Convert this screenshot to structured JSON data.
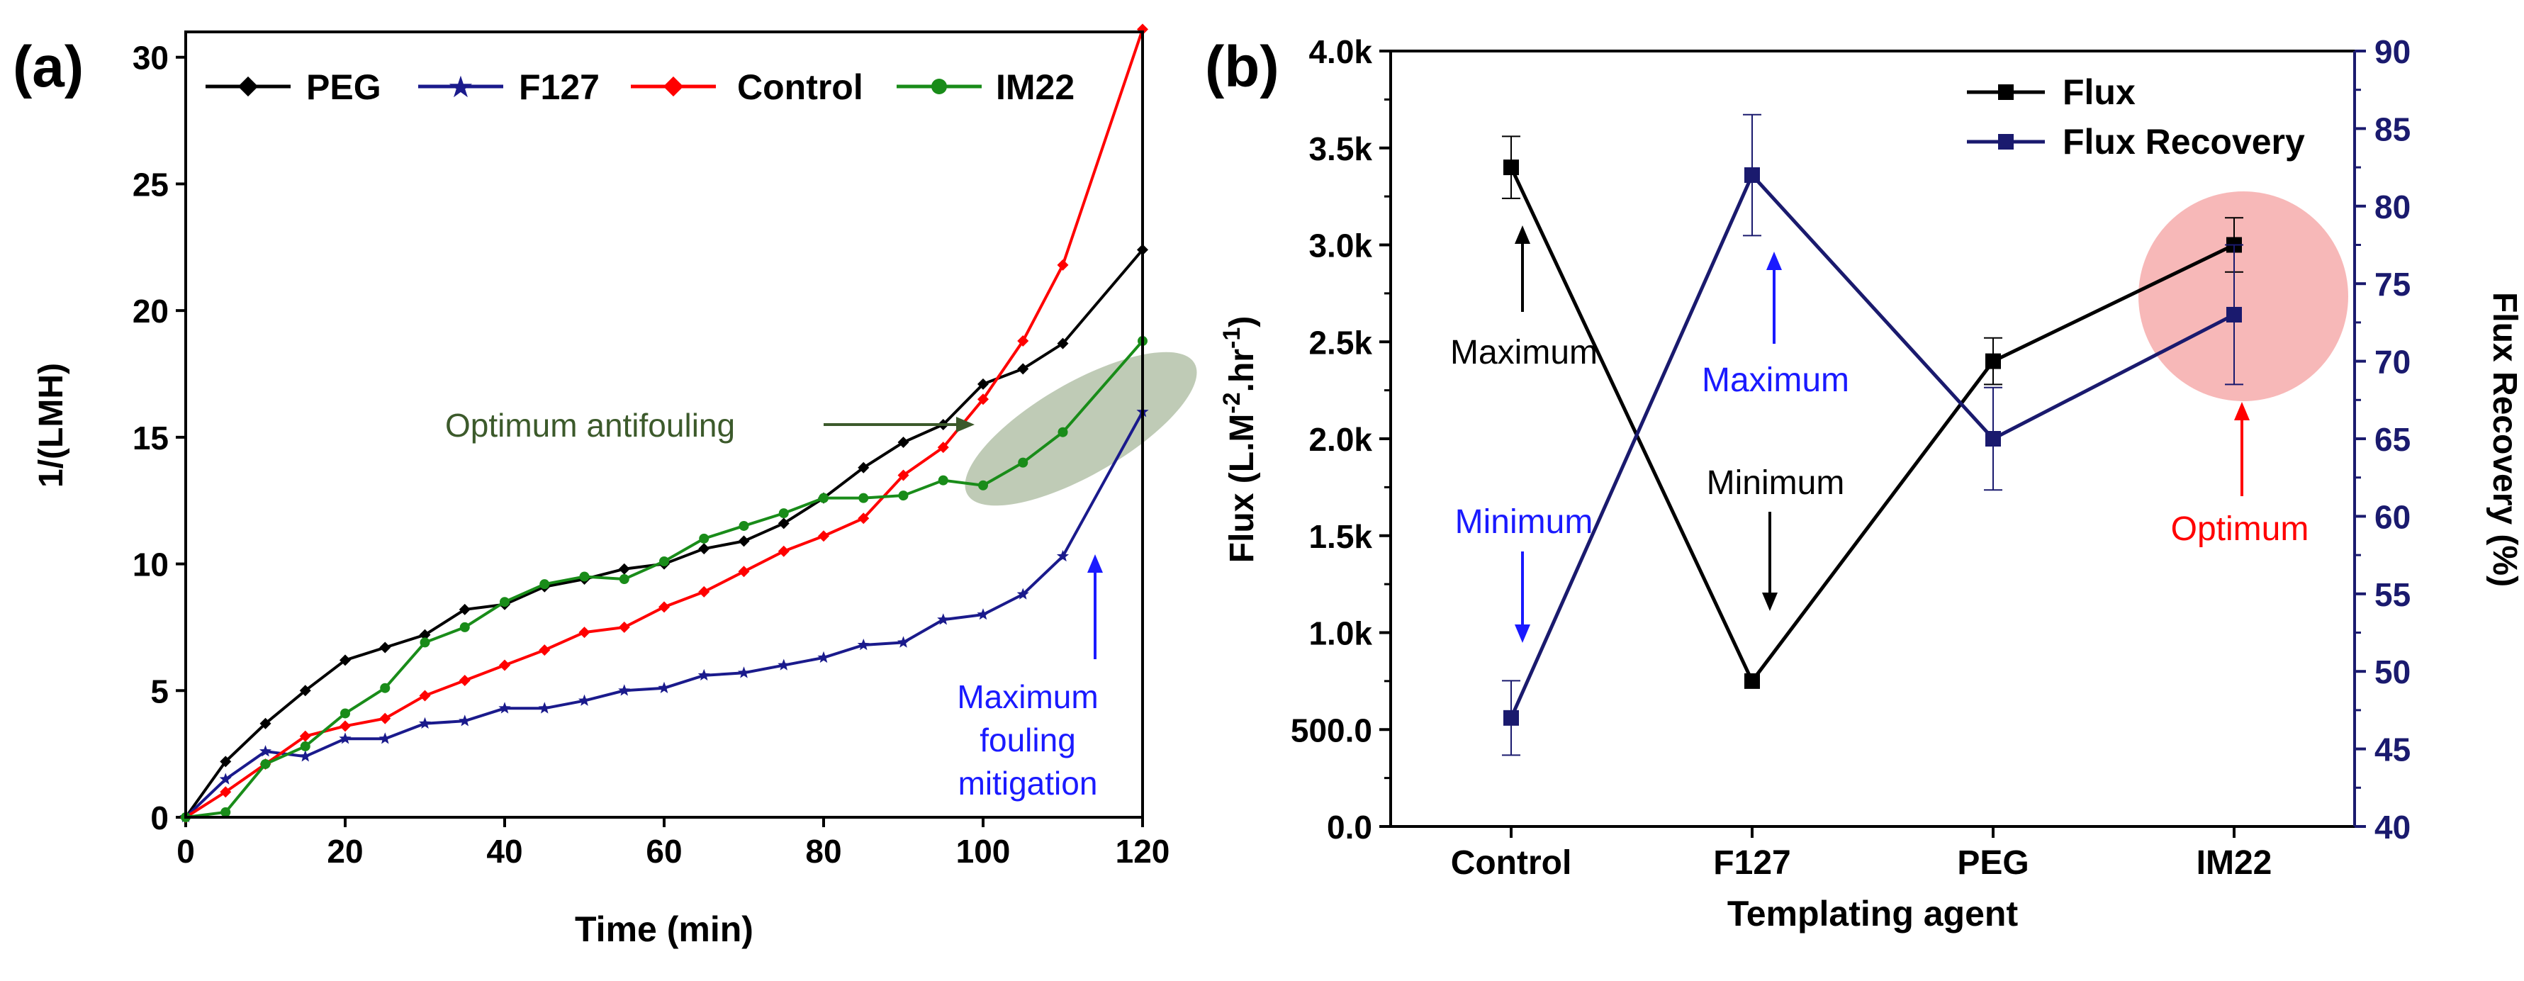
{
  "figure": {
    "panels": [
      "(a)",
      "(b)"
    ]
  },
  "chart_data": [
    {
      "type": "line",
      "panel_label": "(a)",
      "title": "",
      "xlabel": "Time (min)",
      "ylabel": "1/(LMH)",
      "xlim": [
        0,
        120
      ],
      "ylim": [
        0,
        31
      ],
      "x_ticks": [
        0,
        20,
        40,
        60,
        80,
        100,
        120
      ],
      "y_ticks": [
        0,
        5,
        10,
        15,
        20,
        25,
        30
      ],
      "grid": false,
      "legend_position": "top",
      "series": [
        {
          "name": "PEG",
          "color": "#000000",
          "marker": "diamond",
          "x": [
            0,
            5,
            10,
            15,
            20,
            25,
            30,
            35,
            40,
            45,
            50,
            55,
            60,
            65,
            70,
            75,
            80,
            85,
            90,
            95,
            100,
            105,
            110,
            120
          ],
          "y": [
            0,
            2.2,
            3.7,
            5.0,
            6.2,
            6.7,
            7.2,
            8.2,
            8.4,
            9.1,
            9.4,
            9.8,
            10.0,
            10.6,
            10.9,
            11.6,
            12.6,
            13.8,
            14.8,
            15.5,
            17.1,
            17.7,
            18.7,
            22.4
          ]
        },
        {
          "name": "F127",
          "color": "#1a1a8c",
          "marker": "star",
          "x": [
            0,
            5,
            10,
            15,
            20,
            25,
            30,
            35,
            40,
            45,
            50,
            55,
            60,
            65,
            70,
            75,
            80,
            85,
            90,
            95,
            100,
            105,
            110,
            120
          ],
          "y": [
            0,
            1.5,
            2.6,
            2.4,
            3.1,
            3.1,
            3.7,
            3.8,
            4.3,
            4.3,
            4.6,
            5.0,
            5.1,
            5.6,
            5.7,
            6.0,
            6.3,
            6.8,
            6.9,
            7.8,
            8.0,
            8.8,
            10.3,
            16.0
          ]
        },
        {
          "name": "Control",
          "color": "#ff0000",
          "marker": "diamond",
          "x": [
            0,
            5,
            10,
            15,
            20,
            25,
            30,
            35,
            40,
            45,
            50,
            55,
            60,
            65,
            70,
            75,
            80,
            85,
            90,
            95,
            100,
            105,
            110,
            120
          ],
          "y": [
            0,
            1.0,
            2.1,
            3.2,
            3.6,
            3.9,
            4.8,
            5.4,
            6.0,
            6.6,
            7.3,
            7.5,
            8.3,
            8.9,
            9.7,
            10.5,
            11.1,
            11.8,
            13.5,
            14.6,
            16.5,
            18.8,
            21.8,
            31.1
          ]
        },
        {
          "name": "IM22",
          "color": "#198c19",
          "marker": "circle",
          "x": [
            0,
            5,
            10,
            15,
            20,
            25,
            30,
            35,
            40,
            45,
            50,
            55,
            60,
            65,
            70,
            75,
            80,
            85,
            90,
            95,
            100,
            105,
            110,
            120
          ],
          "y": [
            0,
            0.2,
            2.1,
            2.8,
            4.1,
            5.1,
            6.9,
            7.5,
            8.5,
            9.2,
            9.5,
            9.4,
            10.1,
            11.0,
            11.5,
            12.0,
            12.6,
            12.6,
            12.7,
            13.3,
            13.1,
            14.0,
            15.2,
            18.8
          ]
        }
      ],
      "annotations": [
        {
          "text": "Optimum antifouling",
          "color": "#3c5a2b",
          "arrow_to": [
            100,
            16.2
          ]
        },
        {
          "text": "Maximum",
          "color": "#1a1aff",
          "arrow_to": [
            114,
            11
          ]
        },
        {
          "text": "fouling",
          "color": "#1a1aff"
        },
        {
          "text": "mitigation",
          "color": "#1a1aff"
        }
      ],
      "highlight_ellipse": {
        "color": "#8aa07a",
        "center": [
          108,
          15.1
        ]
      }
    },
    {
      "type": "line",
      "panel_label": "(b)",
      "title": "",
      "xlabel": "Templating agent",
      "ylabel": "Flux (L.M-2.hr-1)",
      "ylabel_parts": {
        "pre": "Flux (L.M",
        "sup1": "-2",
        "mid": ".hr",
        "sup2": "-1",
        "post": ")"
      },
      "y2label": "Flux Recovery (%)",
      "categories": [
        "Control",
        "F127",
        "PEG",
        "IM22"
      ],
      "ylim": [
        0,
        4000
      ],
      "y_tick_values": [
        0,
        500,
        1000,
        1500,
        2000,
        2500,
        3000,
        3500,
        4000
      ],
      "y_tick_labels": [
        "0.0",
        "500.0",
        "1.0k",
        "1.5k",
        "2.0k",
        "2.5k",
        "3.0k",
        "3.5k",
        "4.0k"
      ],
      "y2lim": [
        40,
        90
      ],
      "y2_ticks": [
        40,
        45,
        50,
        55,
        60,
        65,
        70,
        75,
        80,
        85,
        90
      ],
      "grid": false,
      "legend_position": "top-right",
      "series": [
        {
          "name": "Flux",
          "axis": "left",
          "color": "#000000",
          "marker": "square",
          "values": [
            3400,
            750,
            2400,
            3000
          ],
          "errors": [
            160,
            0,
            120,
            140
          ]
        },
        {
          "name": "Flux Recovery",
          "axis": "right",
          "color": "#1a1a6e",
          "marker": "square",
          "values": [
            47,
            82,
            65,
            73
          ],
          "errors": [
            2.4,
            3.9,
            3.3,
            4.5
          ]
        }
      ],
      "annotations": [
        {
          "text": "Maximum",
          "color": "#000000"
        },
        {
          "text": "Minimum",
          "color": "#1a1aff"
        },
        {
          "text": "Maximum",
          "color": "#1a1aff"
        },
        {
          "text": "Minimum",
          "color": "#000000"
        },
        {
          "text": "Optimum",
          "color": "#ff0000"
        }
      ],
      "highlight_circle": {
        "color": "#f4a0a0",
        "category": "IM22",
        "value": 2770
      }
    }
  ]
}
